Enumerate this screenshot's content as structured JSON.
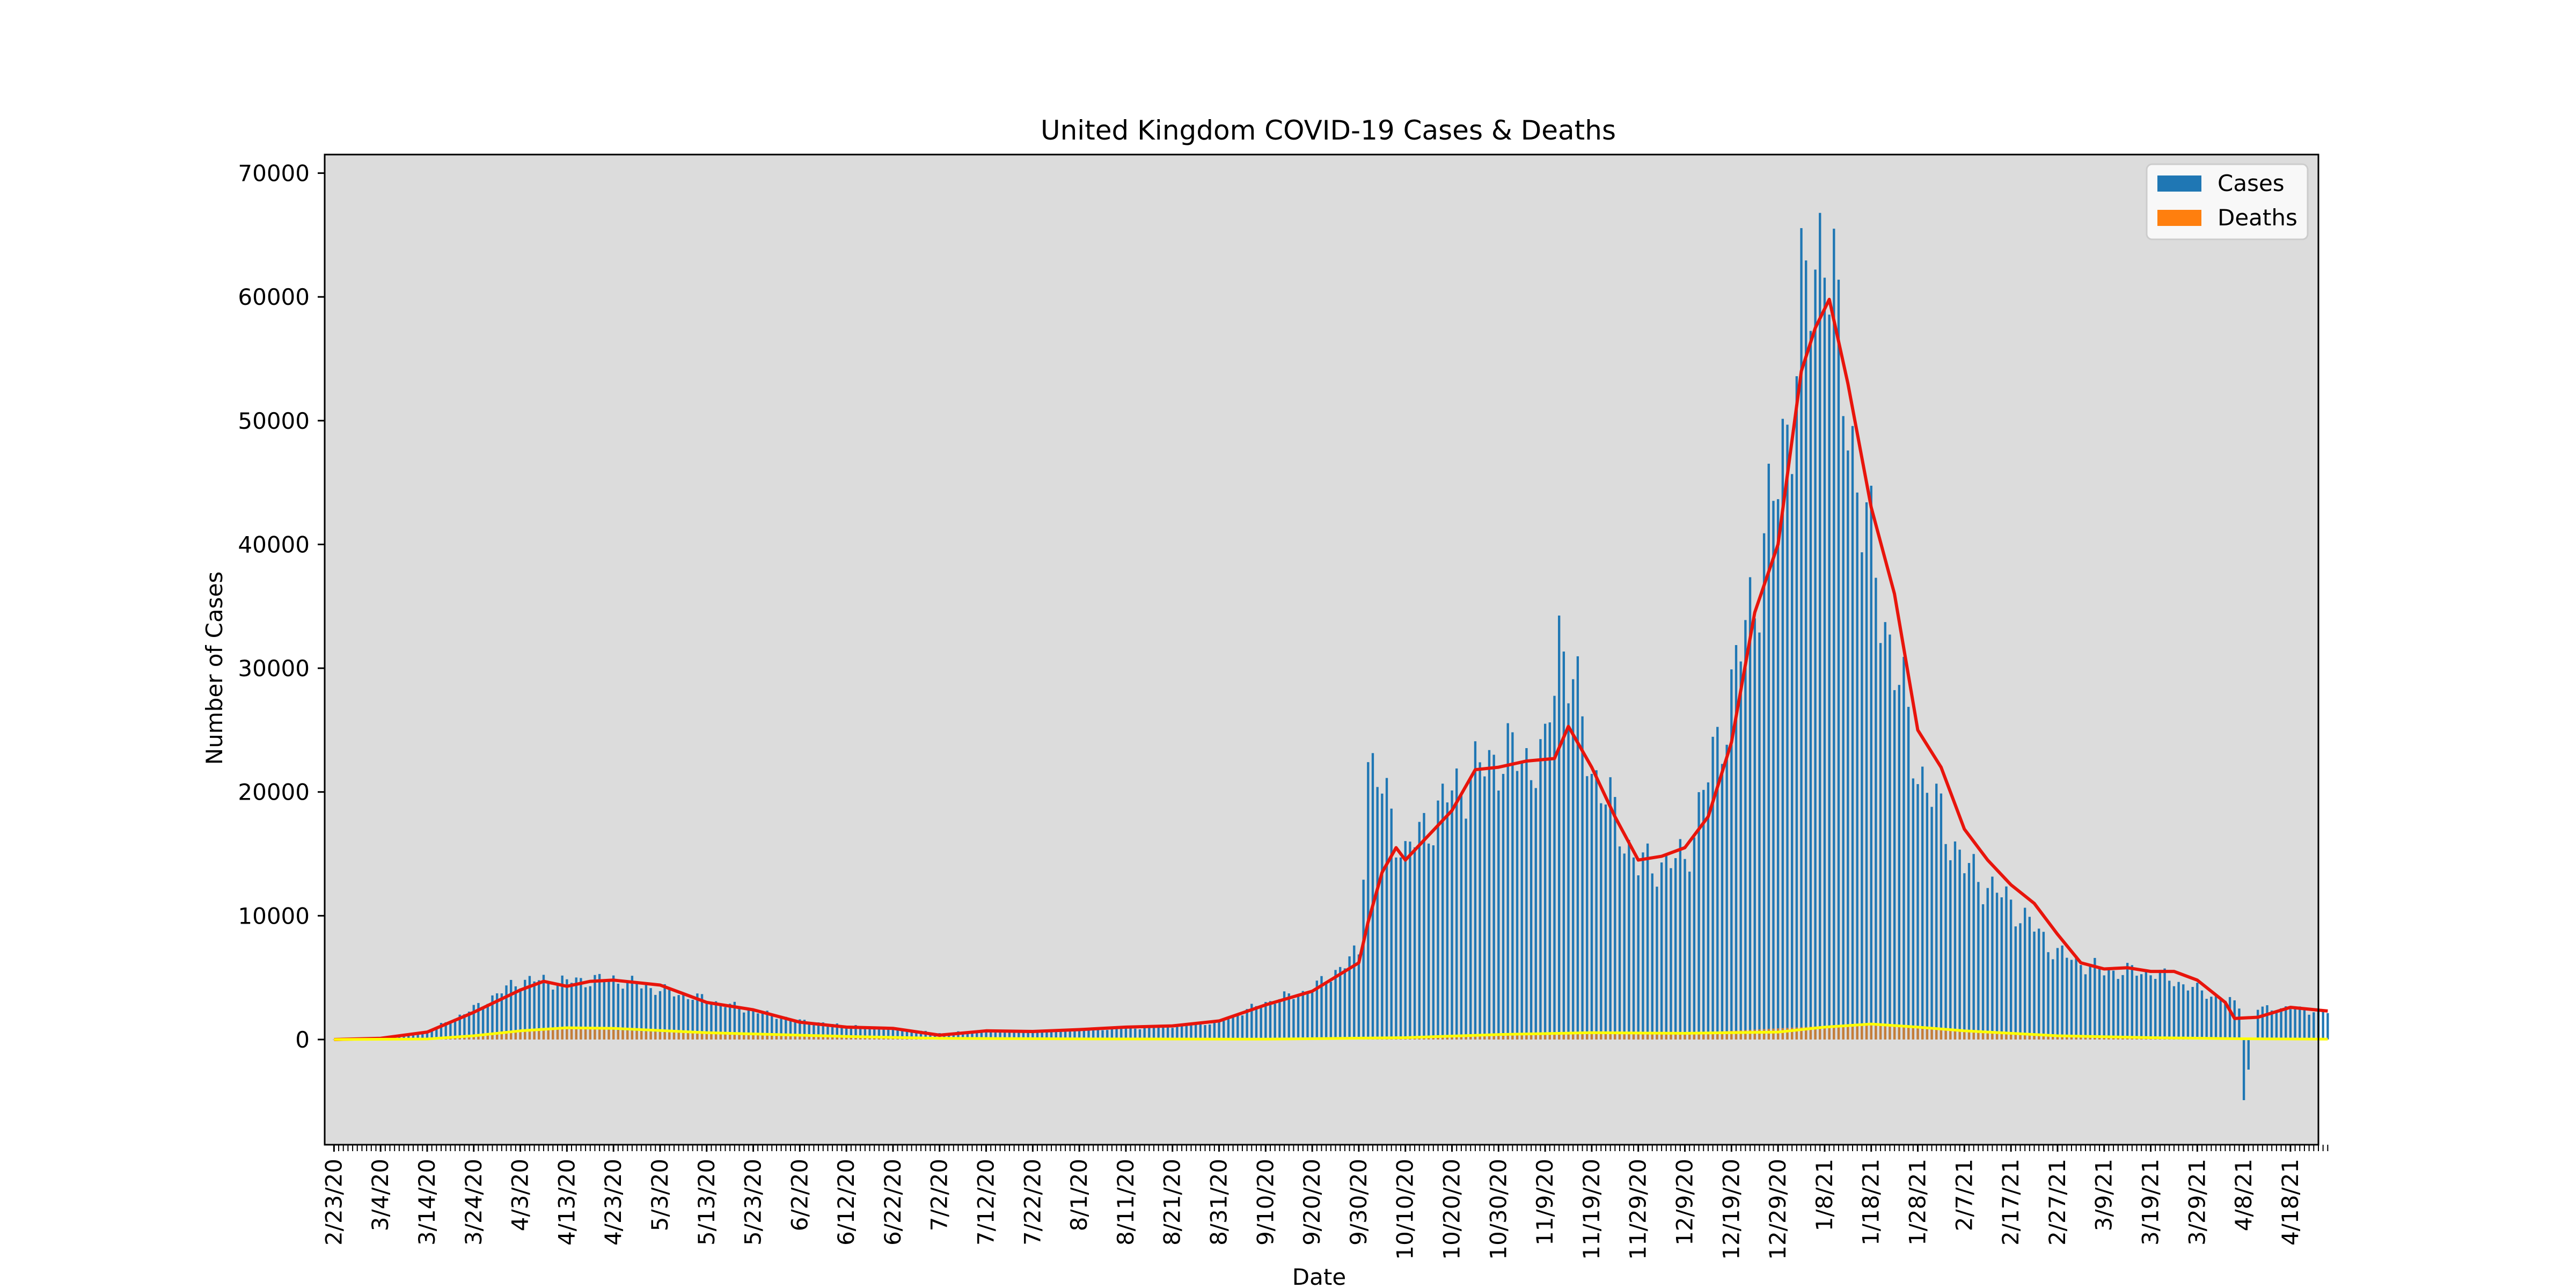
{
  "chart_data": {
    "type": "bar",
    "title": "United Kingdom COVID-19 Cases & Deaths",
    "xlabel": "Date",
    "ylabel": "Number of Cases",
    "ylim": [
      -8500,
      71500
    ],
    "yticks": [
      0,
      10000,
      20000,
      30000,
      40000,
      50000,
      60000,
      70000
    ],
    "xlim_days": [
      -2,
      426
    ],
    "x_start_date": "2/23/20",
    "x_end_date": "4/26/21",
    "xtick_labels": [
      "2/23/20",
      "3/4/20",
      "3/14/20",
      "3/24/20",
      "4/3/20",
      "4/13/20",
      "4/23/20",
      "5/3/20",
      "5/13/20",
      "5/23/20",
      "6/2/20",
      "6/12/20",
      "6/22/20",
      "7/2/20",
      "7/12/20",
      "7/22/20",
      "8/1/20",
      "8/11/20",
      "8/21/20",
      "8/31/20",
      "9/10/20",
      "9/20/20",
      "9/30/20",
      "10/10/20",
      "10/20/20",
      "10/30/20",
      "11/9/20",
      "11/19/20",
      "11/29/20",
      "12/9/20",
      "12/19/20",
      "12/29/20",
      "1/8/21",
      "1/18/21",
      "1/28/21",
      "2/7/21",
      "2/17/21",
      "2/27/21",
      "3/9/21",
      "3/19/21",
      "3/29/21",
      "4/8/21",
      "4/18/21"
    ],
    "grid": false,
    "legend_position": "upper right",
    "background_color": "#dcdcdc",
    "series": [
      {
        "name": "Cases",
        "type": "bar",
        "color": "#1f77b4",
        "dates": [
          "2/23/20",
          "3/4/20",
          "3/14/20",
          "3/24/20",
          "4/3/20",
          "4/13/20",
          "4/23/20",
          "5/3/20",
          "5/13/20",
          "5/23/20",
          "6/2/20",
          "6/12/20",
          "6/22/20",
          "7/2/20",
          "7/12/20",
          "7/22/20",
          "8/1/20",
          "8/11/20",
          "8/21/20",
          "8/31/20",
          "9/10/20",
          "9/20/20",
          "9/30/20",
          "10/2/20",
          "10/10/20",
          "10/20/20",
          "10/30/20",
          "11/9/20",
          "11/12/20",
          "11/19/20",
          "11/29/20",
          "12/9/20",
          "12/19/20",
          "12/29/20",
          "1/3/21",
          "1/6/21",
          "1/8/21",
          "1/11/21",
          "1/18/21",
          "1/28/21",
          "2/7/21",
          "2/17/21",
          "2/27/21",
          "3/9/21",
          "3/19/21",
          "3/29/21",
          "4/7/21",
          "4/8/21",
          "4/11/21",
          "4/18/21",
          "4/26/21"
        ],
        "values": [
          0,
          50,
          600,
          2500,
          4800,
          4700,
          4900,
          4000,
          3200,
          2300,
          1500,
          1100,
          900,
          500,
          700,
          650,
          800,
          900,
          1100,
          1400,
          3000,
          4000,
          7000,
          22900,
          15000,
          20000,
          23000,
          22500,
          33500,
          22000,
          14000,
          14500,
          28000,
          45000,
          58000,
          62000,
          68000,
          55000,
          39000,
          22000,
          14000,
          11000,
          7000,
          5500,
          5500,
          4000,
          2800,
          -4900,
          2500,
          2500,
          2200
        ]
      },
      {
        "name": "Deaths",
        "type": "bar",
        "color": "#ff7f0e",
        "dates": [
          "2/23/20",
          "3/14/20",
          "4/3/20",
          "4/13/20",
          "5/3/20",
          "6/2/20",
          "7/2/20",
          "9/10/20",
          "10/10/20",
          "11/9/20",
          "12/9/20",
          "1/8/21",
          "1/18/21",
          "2/7/21",
          "2/27/21",
          "3/29/21",
          "4/26/21"
        ],
        "values": [
          0,
          30,
          800,
          950,
          600,
          300,
          80,
          20,
          90,
          400,
          500,
          1100,
          1300,
          800,
          350,
          80,
          30
        ]
      },
      {
        "name": "",
        "type": "line",
        "color": "#e8150c",
        "dates": [
          "2/23/20",
          "3/4/20",
          "3/14/20",
          "3/24/20",
          "4/3/20",
          "4/8/20",
          "4/13/20",
          "4/18/20",
          "4/23/20",
          "5/3/20",
          "5/13/20",
          "5/23/20",
          "6/2/20",
          "6/12/20",
          "6/22/20",
          "7/2/20",
          "7/12/20",
          "7/22/20",
          "8/1/20",
          "8/11/20",
          "8/21/20",
          "8/31/20",
          "9/10/20",
          "9/20/20",
          "9/30/20",
          "10/2/20",
          "10/5/20",
          "10/8/20",
          "10/10/20",
          "10/20/20",
          "10/25/20",
          "10/30/20",
          "11/5/20",
          "11/11/20",
          "11/14/20",
          "11/19/20",
          "11/24/20",
          "11/29/20",
          "12/4/20",
          "12/9/20",
          "12/14/20",
          "12/19/20",
          "12/24/20",
          "12/29/20",
          "1/3/21",
          "1/6/21",
          "1/9/21",
          "1/13/21",
          "1/18/21",
          "1/23/21",
          "1/28/21",
          "2/2/21",
          "2/7/21",
          "2/12/21",
          "2/17/21",
          "2/22/21",
          "2/27/21",
          "3/4/21",
          "3/9/21",
          "3/14/21",
          "3/19/21",
          "3/24/21",
          "3/29/21",
          "4/4/21",
          "4/6/21",
          "4/11/21",
          "4/18/21",
          "4/26/21"
        ],
        "values": [
          0,
          100,
          600,
          2200,
          4000,
          4700,
          4300,
          4700,
          4800,
          4400,
          3000,
          2400,
          1400,
          1000,
          900,
          350,
          700,
          650,
          800,
          1000,
          1100,
          1500,
          2800,
          3900,
          6200,
          9500,
          13500,
          15500,
          14500,
          18500,
          21800,
          22000,
          22500,
          22700,
          25300,
          22000,
          18000,
          14500,
          14800,
          15500,
          18000,
          24000,
          34500,
          40000,
          54000,
          57500,
          59800,
          53000,
          43000,
          36000,
          25000,
          22000,
          17000,
          14500,
          12500,
          11000,
          8500,
          6200,
          5700,
          5800,
          5500,
          5500,
          4800,
          3000,
          1700,
          1800,
          2600,
          2300
        ]
      },
      {
        "name": "",
        "type": "line",
        "color": "#ffff00",
        "dates": [
          "2/23/20",
          "3/14/20",
          "3/24/20",
          "4/3/20",
          "4/13/20",
          "4/23/20",
          "5/13/20",
          "6/12/20",
          "7/2/20",
          "8/1/20",
          "9/10/20",
          "10/10/20",
          "10/30/20",
          "11/19/20",
          "12/9/20",
          "12/29/20",
          "1/8/21",
          "1/18/21",
          "1/28/21",
          "2/7/21",
          "2/27/21",
          "3/19/21",
          "4/8/21",
          "4/26/21"
        ],
        "values": [
          0,
          40,
          300,
          700,
          950,
          900,
          550,
          250,
          100,
          50,
          30,
          150,
          400,
          550,
          500,
          600,
          1000,
          1250,
          1000,
          700,
          300,
          150,
          60,
          30
        ]
      }
    ]
  }
}
